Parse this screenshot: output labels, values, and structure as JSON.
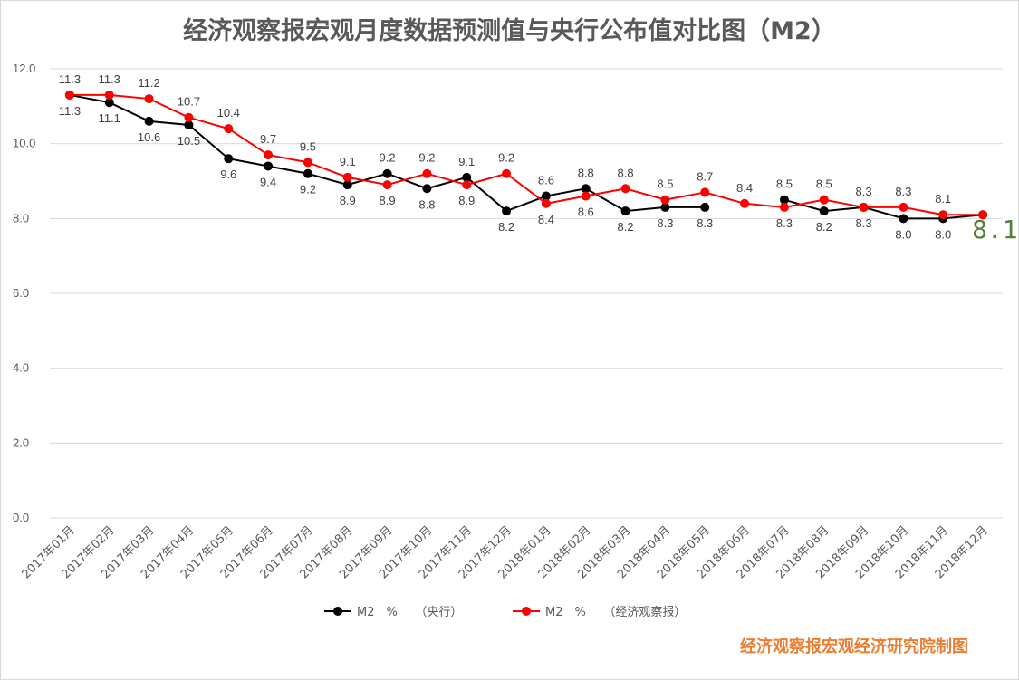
{
  "chart_data": {
    "type": "line",
    "title": "经济观察报宏观月度数据预测值与央行公布值对比图（M2）",
    "categories": [
      "2017年01月",
      "2017年02月",
      "2017年03月",
      "2017年04月",
      "2017年05月",
      "2017年06月",
      "2017年07月",
      "2017年08月",
      "2017年09月",
      "2017年10月",
      "2017年11月",
      "2017年12月",
      "2018年01月",
      "2018年02月",
      "2018年03月",
      "2018年04月",
      "2018年05月",
      "2018年06月",
      "2018年07月",
      "2018年08月",
      "2018年09月",
      "2018年10月",
      "2018年11月",
      "2018年12月"
    ],
    "ylim": [
      0,
      12
    ],
    "yticks": [
      "0.0",
      "2.0",
      "4.0",
      "6.0",
      "8.0",
      "10.0",
      "12.0"
    ],
    "grid": true,
    "legend_position": "bottom",
    "series": [
      {
        "name": "M2　%　　（央行）",
        "color": "#000000",
        "values": [
          11.3,
          11.1,
          10.6,
          10.5,
          9.6,
          9.4,
          9.2,
          8.9,
          9.2,
          8.8,
          9.1,
          8.2,
          8.6,
          8.8,
          8.2,
          8.3,
          8.3,
          null,
          8.5,
          8.2,
          8.3,
          8.0,
          8.0,
          8.1
        ],
        "labels": [
          "11.3",
          "11.1",
          "10.6",
          "10.5",
          "9.6",
          "9.4",
          "9.2",
          "8.9",
          "9.2",
          "8.8",
          "9.1",
          "8.2",
          "8.6",
          "8.8",
          "8.2",
          "8.3",
          "8.3",
          "",
          "8.5",
          "8.2",
          "8.3",
          "8.0",
          "8.0",
          ""
        ]
      },
      {
        "name": "M2　%　　（经济观察报）",
        "color": "#ff0000",
        "values": [
          11.3,
          11.3,
          11.2,
          10.7,
          10.4,
          9.7,
          9.5,
          9.1,
          8.9,
          9.2,
          8.9,
          9.2,
          8.4,
          8.6,
          8.8,
          8.5,
          8.7,
          8.4,
          8.3,
          8.5,
          8.3,
          8.3,
          8.1,
          8.1
        ],
        "labels": [
          "11.3",
          "11.3",
          "11.2",
          "10.7",
          "10.4",
          "9.7",
          "9.5",
          "9.1",
          "8.9",
          "9.2",
          "8.9",
          "9.2",
          "8.4",
          "8.6",
          "8.8",
          "8.5",
          "8.7",
          "8.4",
          "8.3",
          "8.5",
          "8.3",
          "8.3",
          "8.1",
          ""
        ]
      }
    ],
    "annotation": {
      "text": "8.1",
      "color": "#538135"
    }
  },
  "credit": "经济观察报宏观经济研究院制图"
}
